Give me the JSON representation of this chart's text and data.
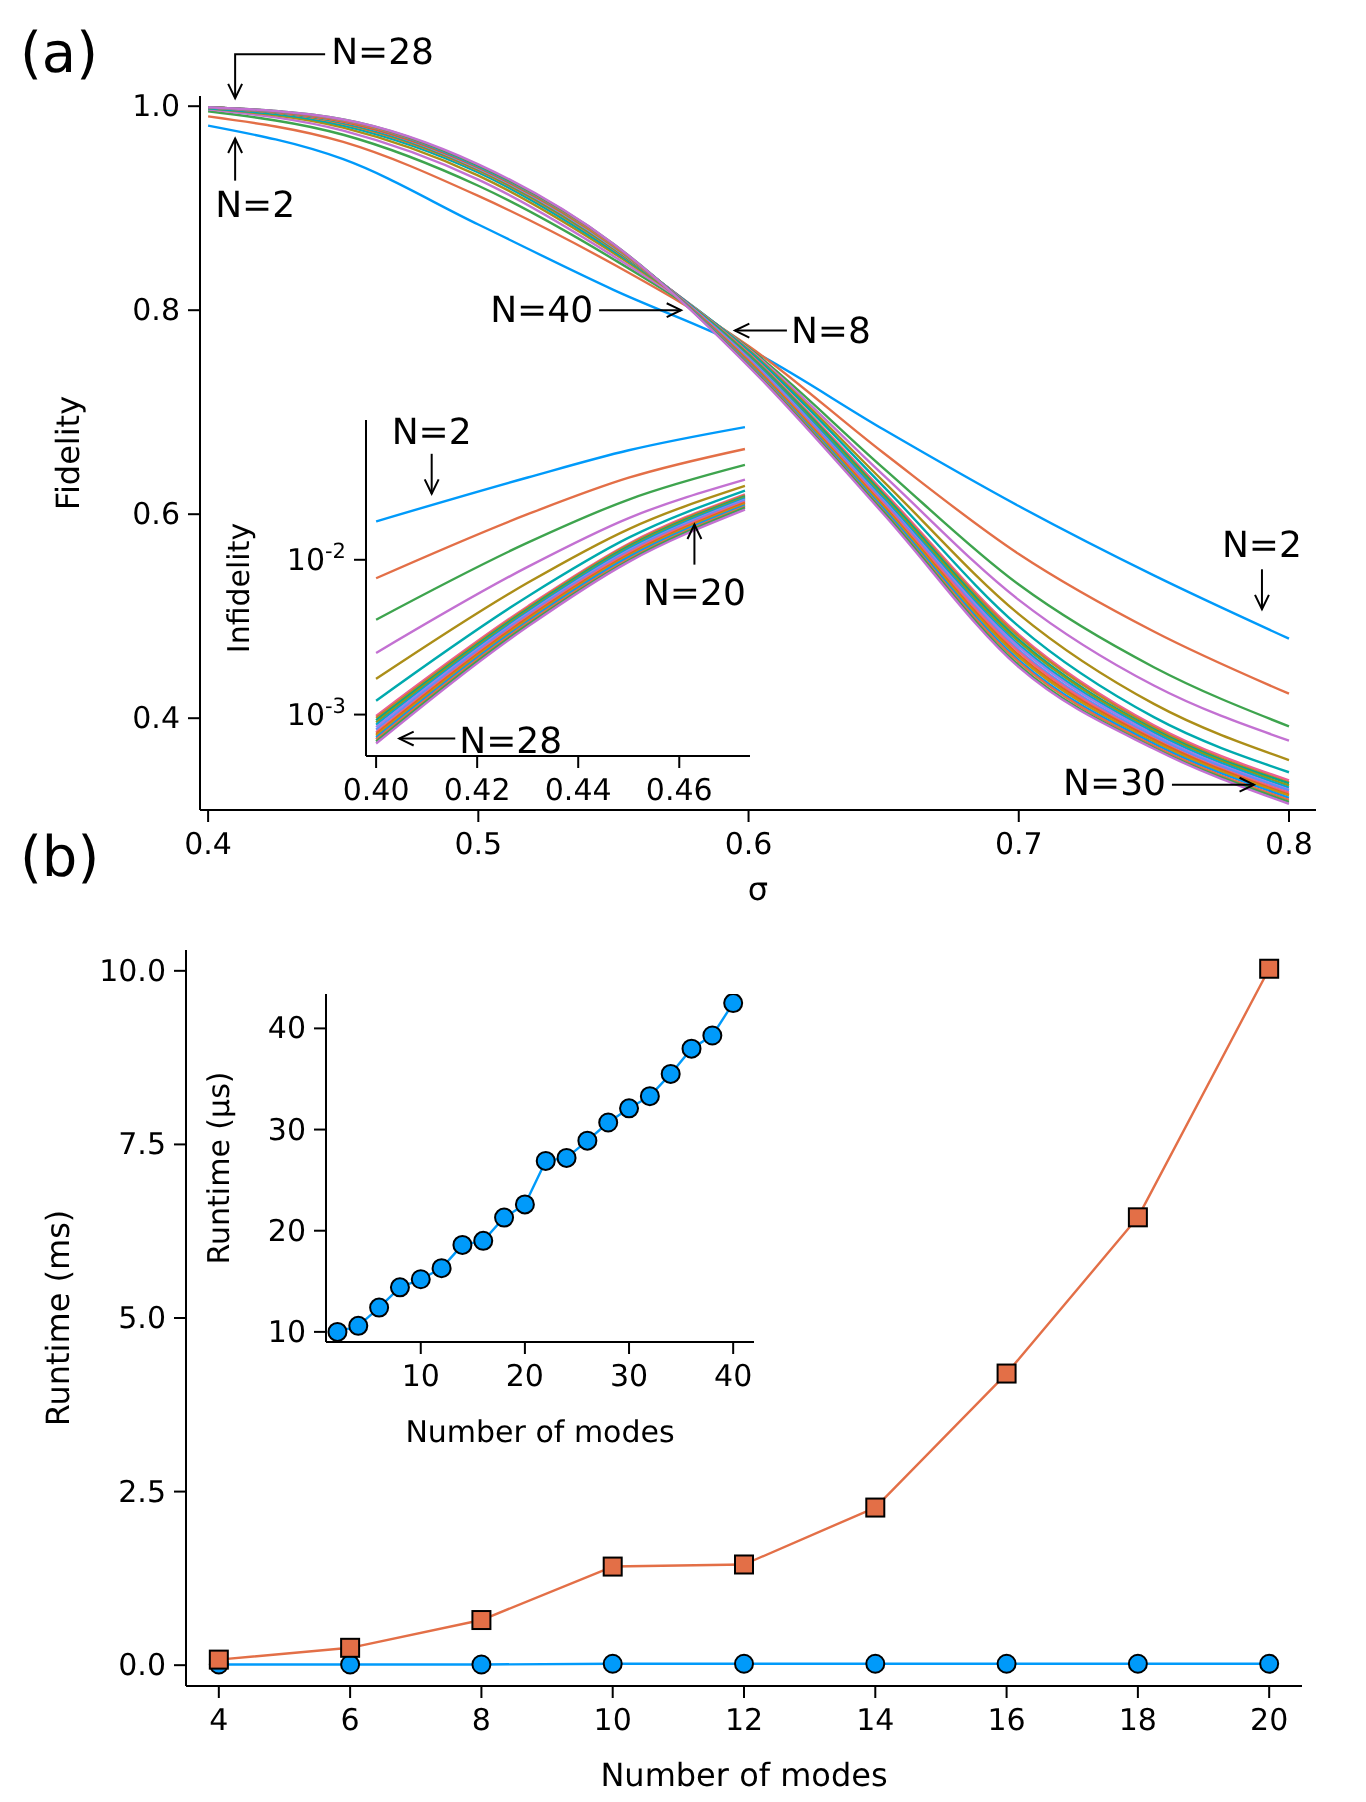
{
  "chart_data": [
    {
      "type": "line",
      "title": "(a)",
      "xlabel": "σ",
      "ylabel": "Fidelity",
      "x": [
        0.4,
        0.45,
        0.5,
        0.55,
        0.6,
        0.65,
        0.7,
        0.75,
        0.8
      ],
      "xlim": [
        0.397,
        0.81
      ],
      "xticks": [
        {
          "value": 0.4,
          "label": "0.4"
        },
        {
          "value": 0.5,
          "label": "0.5"
        },
        {
          "value": 0.6,
          "label": "0.6"
        },
        {
          "value": 0.7,
          "label": "0.7"
        },
        {
          "value": 0.8,
          "label": "0.8"
        }
      ],
      "ylim": [
        0.31,
        1.01
      ],
      "yticks": [
        0.4,
        0.6,
        0.8,
        {
          "value": 1,
          "label": "1.0"
        }
      ],
      "series": [
        {
          "color": "#009afa",
          "values": [
            0.981,
            0.948,
            0.884,
            0.82,
            0.762,
            0.683,
            0.608,
            0.54,
            0.478
          ]
        },
        {
          "color": "#e36f47",
          "values": [
            0.99,
            0.965,
            0.912,
            0.845,
            0.765,
            0.66,
            0.561,
            0.485,
            0.424
          ]
        },
        {
          "color": "#3ea44e",
          "values": [
            0.995,
            0.972,
            0.922,
            0.85,
            0.763,
            0.645,
            0.531,
            0.45,
            0.392
          ]
        },
        {
          "color": "#c371d2",
          "values": [
            0.997,
            0.976,
            0.928,
            0.853,
            0.762,
            0.638,
            0.516,
            0.432,
            0.378
          ]
        },
        {
          "color": "#ac8e18",
          "values": [
            0.998,
            0.979,
            0.932,
            0.856,
            0.761,
            0.632,
            0.502,
            0.414,
            0.359
          ]
        },
        {
          "color": "#00aaae",
          "values": [
            0.998,
            0.981,
            0.935,
            0.858,
            0.76,
            0.627,
            0.49,
            0.401,
            0.347
          ]
        },
        {
          "color": "#ed5e93",
          "values": [
            0.999,
            0.983,
            0.937,
            0.86,
            0.758,
            0.622,
            0.482,
            0.393,
            0.339
          ]
        },
        {
          "color": "#c68225",
          "values": [
            0.999,
            0.983,
            0.937,
            0.86,
            0.757,
            0.62,
            0.48,
            0.391,
            0.337
          ]
        },
        {
          "color": "#00a98d",
          "values": [
            0.999,
            0.984,
            0.938,
            0.861,
            0.756,
            0.619,
            0.477,
            0.389,
            0.336
          ]
        },
        {
          "color": "#8e971e",
          "values": [
            0.999,
            0.984,
            0.938,
            0.861,
            0.755,
            0.617,
            0.475,
            0.388,
            0.334
          ]
        },
        {
          "color": "#00a8cb",
          "values": [
            0.999,
            0.984,
            0.939,
            0.862,
            0.754,
            0.615,
            0.472,
            0.386,
            0.332
          ]
        },
        {
          "color": "#9b7fe9",
          "values": [
            0.999,
            0.985,
            0.939,
            0.862,
            0.753,
            0.613,
            0.47,
            0.384,
            0.33
          ]
        },
        {
          "color": "#618df6",
          "values": [
            0.999,
            0.985,
            0.94,
            0.862,
            0.752,
            0.612,
            0.467,
            0.382,
            0.329
          ]
        },
        {
          "color": "#f06180",
          "values": [
            0.999,
            0.985,
            0.94,
            0.863,
            0.751,
            0.61,
            0.465,
            0.38,
            0.327
          ]
        },
        {
          "color": "#dd6420",
          "values": [
            0.999,
            0.985,
            0.94,
            0.863,
            0.75,
            0.608,
            0.462,
            0.379,
            0.325
          ]
        },
        {
          "color": "#c69211",
          "values": [
            0.999,
            0.986,
            0.941,
            0.863,
            0.749,
            0.607,
            0.46,
            0.377,
            0.324
          ]
        },
        {
          "color": "#009afa",
          "values": [
            0.999,
            0.986,
            0.941,
            0.864,
            0.748,
            0.605,
            0.457,
            0.375,
            0.322
          ]
        },
        {
          "color": "#e36f47",
          "values": [
            0.999,
            0.986,
            0.942,
            0.864,
            0.747,
            0.603,
            0.455,
            0.373,
            0.32
          ]
        },
        {
          "color": "#3ea44e",
          "values": [
            0.999,
            0.987,
            0.942,
            0.865,
            0.746,
            0.602,
            0.452,
            0.371,
            0.318
          ]
        },
        {
          "color": "#c371d2",
          "values": [
            0.999,
            0.987,
            0.943,
            0.865,
            0.745,
            0.6,
            0.45,
            0.37,
            0.316
          ]
        }
      ],
      "annotations": [
        {
          "text": "N=28",
          "x": 0.41,
          "y": 0.998
        },
        {
          "text": "N=2",
          "x": 0.41,
          "y": 0.978
        },
        {
          "text": "N=8",
          "x": 0.592,
          "y": 0.78
        },
        {
          "text": "N=40",
          "x": 0.578,
          "y": 0.8
        },
        {
          "text": "N=2",
          "x": 0.79,
          "y": 0.495
        },
        {
          "text": "N=30",
          "x": 0.79,
          "y": 0.325
        }
      ]
    },
    {
      "type": "line",
      "ylabel": "Infidelity",
      "log": "y",
      "x": [
        0.4,
        0.43,
        0.45,
        0.473
      ],
      "xlim": [
        0.398,
        0.474
      ],
      "xticks": [
        {
          "value": 0.4,
          "label": "0.40"
        },
        {
          "value": 0.42,
          "label": "0.42"
        },
        {
          "value": 0.44,
          "label": "0.44"
        },
        {
          "value": 0.46,
          "label": "0.46"
        }
      ],
      "ylim": [
        0.00054,
        0.08
      ],
      "yticks": [
        {
          "value": 0.001,
          "label": "10$^{-3}$"
        },
        {
          "value": 0.01,
          "label": "10$^{-2}$"
        }
      ],
      "series": [
        {
          "color": "#009afa",
          "values": [
            0.0177,
            0.034,
            0.051,
            0.072
          ]
        },
        {
          "color": "#e36f47",
          "values": [
            0.0076,
            0.0197,
            0.0339,
            0.052
          ]
        },
        {
          "color": "#3ea44e",
          "values": [
            0.0041,
            0.0129,
            0.0245,
            0.041
          ]
        },
        {
          "color": "#c371d2",
          "values": [
            0.0025,
            0.009,
            0.0186,
            0.033
          ]
        },
        {
          "color": "#ac8e18",
          "values": [
            0.0017,
            0.0071,
            0.0158,
            0.03
          ]
        },
        {
          "color": "#00aaae",
          "values": [
            0.00123,
            0.0058,
            0.0139,
            0.028
          ]
        },
        {
          "color": "#ed5e93",
          "values": [
            0.00098,
            0.005,
            0.0127,
            0.0265
          ]
        },
        {
          "color": "#c68225",
          "values": [
            0.00095,
            0.0049,
            0.0125,
            0.0261
          ]
        },
        {
          "color": "#00a98d",
          "values": [
            0.00092,
            0.0048,
            0.0122,
            0.0257
          ]
        },
        {
          "color": "#8e971e",
          "values": [
            0.00089,
            0.0047,
            0.012,
            0.0253
          ]
        },
        {
          "color": "#00a8cb",
          "values": [
            0.00086,
            0.0046,
            0.0118,
            0.0249
          ]
        },
        {
          "color": "#9b7fe9",
          "values": [
            0.00083,
            0.0045,
            0.0115,
            0.0245
          ]
        },
        {
          "color": "#618df6",
          "values": [
            0.0008,
            0.0044,
            0.0113,
            0.0241
          ]
        },
        {
          "color": "#f06180",
          "values": [
            0.00077,
            0.0043,
            0.0111,
            0.0237
          ]
        },
        {
          "color": "#dd6420",
          "values": [
            0.00075,
            0.0042,
            0.0108,
            0.0233
          ]
        },
        {
          "color": "#c69211",
          "values": [
            0.00073,
            0.0041,
            0.0106,
            0.0229
          ]
        },
        {
          "color": "#009afa",
          "values": [
            0.00071,
            0.004,
            0.0104,
            0.0225
          ]
        },
        {
          "color": "#e36f47",
          "values": [
            0.00069,
            0.0039,
            0.0101,
            0.0221
          ]
        },
        {
          "color": "#3ea44e",
          "values": [
            0.00067,
            0.0038,
            0.0099,
            0.0217
          ]
        },
        {
          "color": "#c371d2",
          "values": [
            0.00065,
            0.0037,
            0.0097,
            0.0211
          ]
        }
      ],
      "annotations": [
        {
          "text": "N=2",
          "x": 0.411,
          "y": 0.023
        },
        {
          "text": "N=20",
          "x": 0.463,
          "y": 0.019
        },
        {
          "text": "N=28",
          "x": 0.403,
          "y": 0.0007
        }
      ]
    },
    {
      "type": "line",
      "title": "(b)",
      "xlabel": "Number of modes",
      "ylabel": "Runtime (ms)",
      "x": [
        4,
        6,
        8,
        10,
        12,
        14,
        16,
        18,
        20
      ],
      "xlim": [
        3.5,
        20.5
      ],
      "xticks": [
        4,
        6,
        8,
        10,
        12,
        14,
        16,
        18,
        20
      ],
      "ylim": [
        -0.3,
        10.3
      ],
      "yticks": [
        {
          "value": 0,
          "label": "0.0"
        },
        2.5,
        {
          "value": 5,
          "label": "5.0"
        },
        7.5,
        {
          "value": 10,
          "label": "10.0"
        }
      ],
      "series": [
        {
          "color": "#009afa",
          "marker": "circle",
          "values": [
            0.01,
            0.01,
            0.01,
            0.02,
            0.02,
            0.02,
            0.02,
            0.02,
            0.02
          ]
        },
        {
          "color": "#e36f47",
          "marker": "square",
          "values": [
            0.08,
            0.25,
            0.65,
            1.42,
            1.45,
            2.27,
            4.2,
            6.45,
            10.03
          ]
        }
      ]
    },
    {
      "type": "line",
      "xlabel": "Number of modes",
      "ylabel": "Runtime (µs)",
      "marker": "circle",
      "x": [
        2,
        4,
        6,
        8,
        10,
        12,
        14,
        16,
        18,
        20,
        22,
        24,
        26,
        28,
        30,
        32,
        34,
        36,
        38,
        40
      ],
      "xlim": [
        0.9,
        42
      ],
      "xticks": [
        10,
        20,
        30,
        40
      ],
      "ylim": [
        9,
        43.4
      ],
      "yticks": [
        10,
        20,
        30,
        40
      ],
      "series": [
        {
          "color": "#009afa",
          "values": [
            10.0,
            10.6,
            12.4,
            14.4,
            15.2,
            16.3,
            18.6,
            19.0,
            21.3,
            22.6,
            26.9,
            27.2,
            28.9,
            30.7,
            32.1,
            33.3,
            35.5,
            38.0,
            39.3,
            42.5
          ]
        }
      ]
    }
  ]
}
